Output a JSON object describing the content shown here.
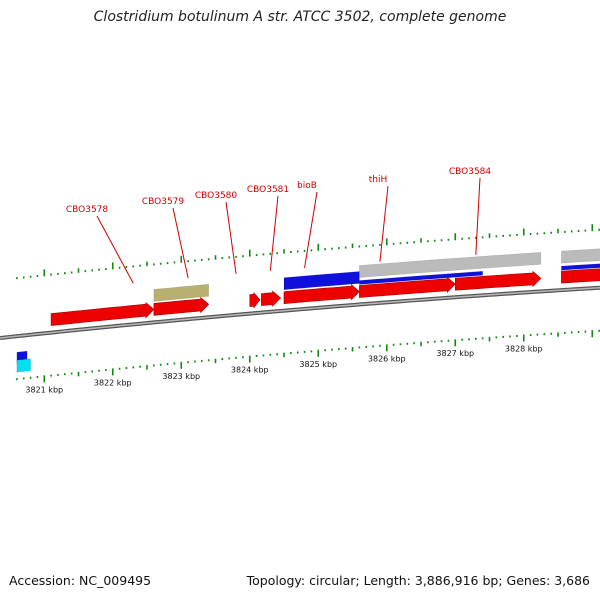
{
  "header": {
    "title": "Clostridium botulinum A str. ATCC 3502, complete genome"
  },
  "footer": {
    "accession": "Accession: NC_009495",
    "summary": "Topology: circular; Length: 3,886,916 bp; Genes: 3,686"
  },
  "colors": {
    "gene_red": "#ee0000",
    "gene_blue": "#1010dd",
    "gene_olive": "#b8b070",
    "gene_gray": "#bbbbbb",
    "gene_cyan": "#00e0f0",
    "tick_green": "#118811",
    "backbone": "#888888",
    "label_red": "#cc0000"
  },
  "scale": {
    "tick_labels": [
      {
        "kbp": 3821,
        "text": "3821 kbp"
      },
      {
        "kbp": 3822,
        "text": "3822 kbp"
      },
      {
        "kbp": 3823,
        "text": "3823 kbp"
      },
      {
        "kbp": 3824,
        "text": "3824 kbp"
      },
      {
        "kbp": 3825,
        "text": "3825 kbp"
      },
      {
        "kbp": 3826,
        "text": "3826 kbp"
      },
      {
        "kbp": 3827,
        "text": "3827 kbp"
      },
      {
        "kbp": 3828,
        "text": "3828 kbp"
      }
    ],
    "visible_range_kbp": [
      3820.6,
      3829.3
    ],
    "minor_ticks_per_kbp": 10
  },
  "gene_labels": [
    {
      "text": "CBO3578",
      "kbp": 3822.3
    },
    {
      "text": "CBO3579",
      "kbp": 3823.1
    },
    {
      "text": "CBO3580",
      "kbp": 3823.8
    },
    {
      "text": "CBO3581",
      "kbp": 3824.3
    },
    {
      "text": "bioB",
      "kbp": 3824.8
    },
    {
      "text": "thiH",
      "kbp": 3825.9
    },
    {
      "text": "CBO3584",
      "kbp": 3827.3
    }
  ],
  "features": {
    "forward_genes": [
      {
        "start_kbp": 3821.1,
        "end_kbp": 3822.6,
        "color": "red"
      },
      {
        "start_kbp": 3822.6,
        "end_kbp": 3823.4,
        "color": "red"
      },
      {
        "start_kbp": 3824.0,
        "end_kbp": 3824.15,
        "color": "red"
      },
      {
        "start_kbp": 3824.17,
        "end_kbp": 3824.45,
        "color": "red"
      },
      {
        "start_kbp": 3824.5,
        "end_kbp": 3825.6,
        "color": "red"
      },
      {
        "start_kbp": 3825.6,
        "end_kbp": 3827.0,
        "color": "red"
      },
      {
        "start_kbp": 3827.0,
        "end_kbp": 3828.25,
        "color": "red"
      },
      {
        "start_kbp": 3828.55,
        "end_kbp": 3829.3,
        "color": "red"
      }
    ],
    "annotation_bars": [
      {
        "start_kbp": 3822.6,
        "end_kbp": 3823.4,
        "color": "olive",
        "lane": 1
      },
      {
        "start_kbp": 3824.5,
        "end_kbp": 3825.6,
        "color": "blue",
        "lane": 1
      },
      {
        "start_kbp": 3825.6,
        "end_kbp": 3827.4,
        "color": "blue",
        "lane": 1,
        "thin": true
      },
      {
        "start_kbp": 3825.6,
        "end_kbp": 3828.25,
        "color": "gray",
        "lane": 2
      },
      {
        "start_kbp": 3828.55,
        "end_kbp": 3829.3,
        "color": "gray",
        "lane": 2
      },
      {
        "start_kbp": 3828.55,
        "end_kbp": 3829.3,
        "color": "blue",
        "lane": 1,
        "thin": true
      },
      {
        "start_kbp": 3820.6,
        "end_kbp": 3820.75,
        "color": "blue",
        "lane": -2
      },
      {
        "start_kbp": 3820.6,
        "end_kbp": 3820.8,
        "color": "cyan",
        "lane": -3
      }
    ]
  }
}
